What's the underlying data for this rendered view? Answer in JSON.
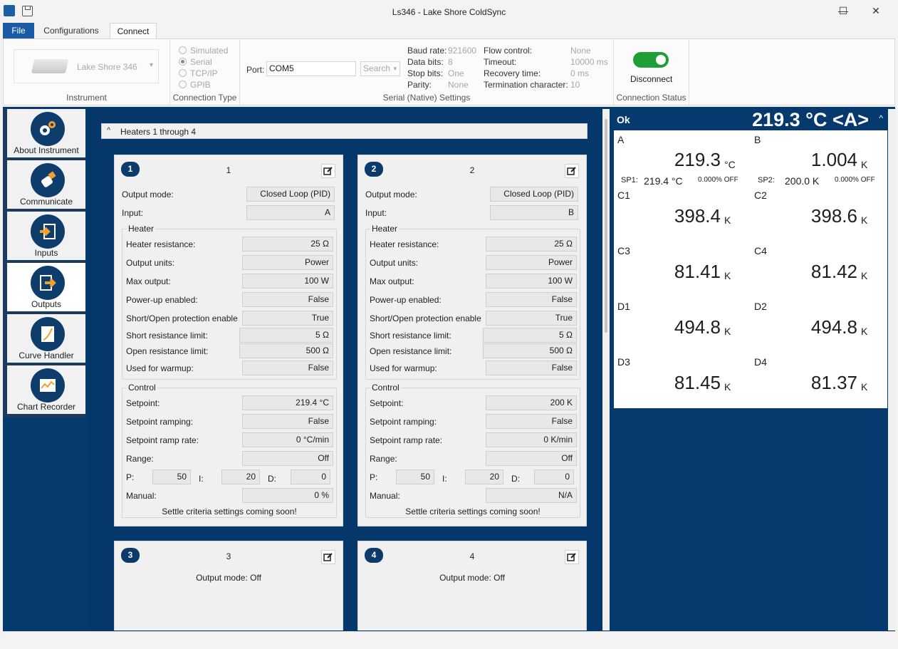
{
  "window": {
    "title": "Ls346 - Lake Shore ColdSync",
    "min": "—",
    "max": "☐",
    "close": "✕"
  },
  "ribbon_tabs": {
    "file": "File",
    "configurations": "Configurations",
    "connect": "Connect"
  },
  "instrument": {
    "name": "Lake Shore 346",
    "dropdown_arrow": "▾",
    "group_label": "Instrument"
  },
  "connection_type": {
    "options": [
      "Simulated",
      "Serial",
      "TCP/IP",
      "GPIB"
    ],
    "selected": "Serial",
    "group_label": "Connection Type"
  },
  "serial": {
    "port_label": "Port:",
    "port_value": "COM5",
    "search_label": "Search",
    "baud_label": "Baud rate:",
    "baud_value": "921600",
    "data_label": "Data bits:",
    "data_value": "8",
    "stop_label": "Stop bits:",
    "stop_value": "One",
    "parity_label": "Parity:",
    "parity_value": "None",
    "flow_label": "Flow control:",
    "flow_value": "None",
    "timeout_label": "Timeout:",
    "timeout_value": "10000 ms",
    "recovery_label": "Recovery time:",
    "recovery_value": "0 ms",
    "term_label": "Termination character:",
    "term_value": "10",
    "group_label": "Serial (Native) Settings"
  },
  "connection_status": {
    "button": "Disconnect",
    "group_label": "Connection Status",
    "connected": true,
    "toggle_color": "#1e9e34"
  },
  "nav": [
    {
      "label": "About Instrument",
      "icon": "gears-icon"
    },
    {
      "label": "Communicate",
      "icon": "usb-plug-icon"
    },
    {
      "label": "Inputs",
      "icon": "input-arrow-icon"
    },
    {
      "label": "Outputs",
      "icon": "output-arrow-icon",
      "active": true
    },
    {
      "label": "Curve Handler",
      "icon": "curve-notebook-icon"
    },
    {
      "label": "Chart Recorder",
      "icon": "chart-recorder-icon"
    }
  ],
  "section": {
    "title": "Heaters 1 through 4",
    "chevron": "^"
  },
  "labels": {
    "output_mode": "Output mode:",
    "input": "Input:",
    "heater": "Heater",
    "heater_resistance": "Heater resistance:",
    "output_units": "Output units:",
    "max_output": "Max output:",
    "power_up": "Power-up enabled:",
    "short_open": "Short/Open protection enable",
    "short_limit": "Short resistance limit:",
    "open_limit": "Open resistance limit:",
    "warmup": "Used for warmup:",
    "control": "Control",
    "setpoint": "Setpoint:",
    "ramping": "Setpoint ramping:",
    "ramp_rate": "Setpoint ramp rate:",
    "range": "Range:",
    "p": "P:",
    "i": "I:",
    "d": "D:",
    "manual": "Manual:",
    "settle": "Settle criteria settings coming soon!"
  },
  "heaters": [
    {
      "badge": "1",
      "name": "1",
      "output_mode": "Closed Loop (PID)",
      "input": "A",
      "heater_resistance": "25 Ω",
      "output_units": "Power",
      "max_output": "100 W",
      "power_up": "False",
      "short_open": "True",
      "short_limit": "5 Ω",
      "open_limit": "500 Ω",
      "warmup": "False",
      "setpoint": "219.4 °C",
      "ramping": "False",
      "ramp_rate": "0 °C/min",
      "range": "Off",
      "p": "50",
      "i": "20",
      "d": "0",
      "manual": "0 %"
    },
    {
      "badge": "2",
      "name": "2",
      "output_mode": "Closed Loop (PID)",
      "input": "B",
      "heater_resistance": "25 Ω",
      "output_units": "Power",
      "max_output": "100 W",
      "power_up": "False",
      "short_open": "True",
      "short_limit": "5 Ω",
      "open_limit": "500 Ω",
      "warmup": "False",
      "setpoint": "200 K",
      "ramping": "False",
      "ramp_rate": "0 K/min",
      "range": "Off",
      "p": "50",
      "i": "20",
      "d": "0",
      "manual": "N/A"
    },
    {
      "badge": "3",
      "name": "3",
      "summary": "Output mode: Off"
    },
    {
      "badge": "4",
      "name": "4",
      "summary": "Output mode: Off"
    }
  ],
  "readout": {
    "status": "Ok",
    "headline": "219.3 °C <A>",
    "collapse": "^",
    "channels": [
      {
        "ch": "A",
        "value": "219.3",
        "unit": "°C",
        "sp_label": "SP1:",
        "sp_value": "219.4 °C",
        "sp_out": "0.000% OFF"
      },
      {
        "ch": "B",
        "value": "1.004",
        "unit": "K",
        "sp_label": "SP2:",
        "sp_value": "200.0 K",
        "sp_out": "0.000% OFF"
      },
      {
        "ch": "C1",
        "value": "398.4",
        "unit": "K"
      },
      {
        "ch": "C2",
        "value": "398.6",
        "unit": "K"
      },
      {
        "ch": "C3",
        "value": "81.41",
        "unit": "K"
      },
      {
        "ch": "C4",
        "value": "81.42",
        "unit": "K"
      },
      {
        "ch": "D1",
        "value": "494.8",
        "unit": "K"
      },
      {
        "ch": "D2",
        "value": "494.8",
        "unit": "K"
      },
      {
        "ch": "D3",
        "value": "81.45",
        "unit": "K"
      },
      {
        "ch": "D4",
        "value": "81.37",
        "unit": "K"
      }
    ]
  },
  "colors": {
    "accent": "#1b5ba3",
    "navy": "#063a6e",
    "nav_orange": "#f0a030"
  }
}
